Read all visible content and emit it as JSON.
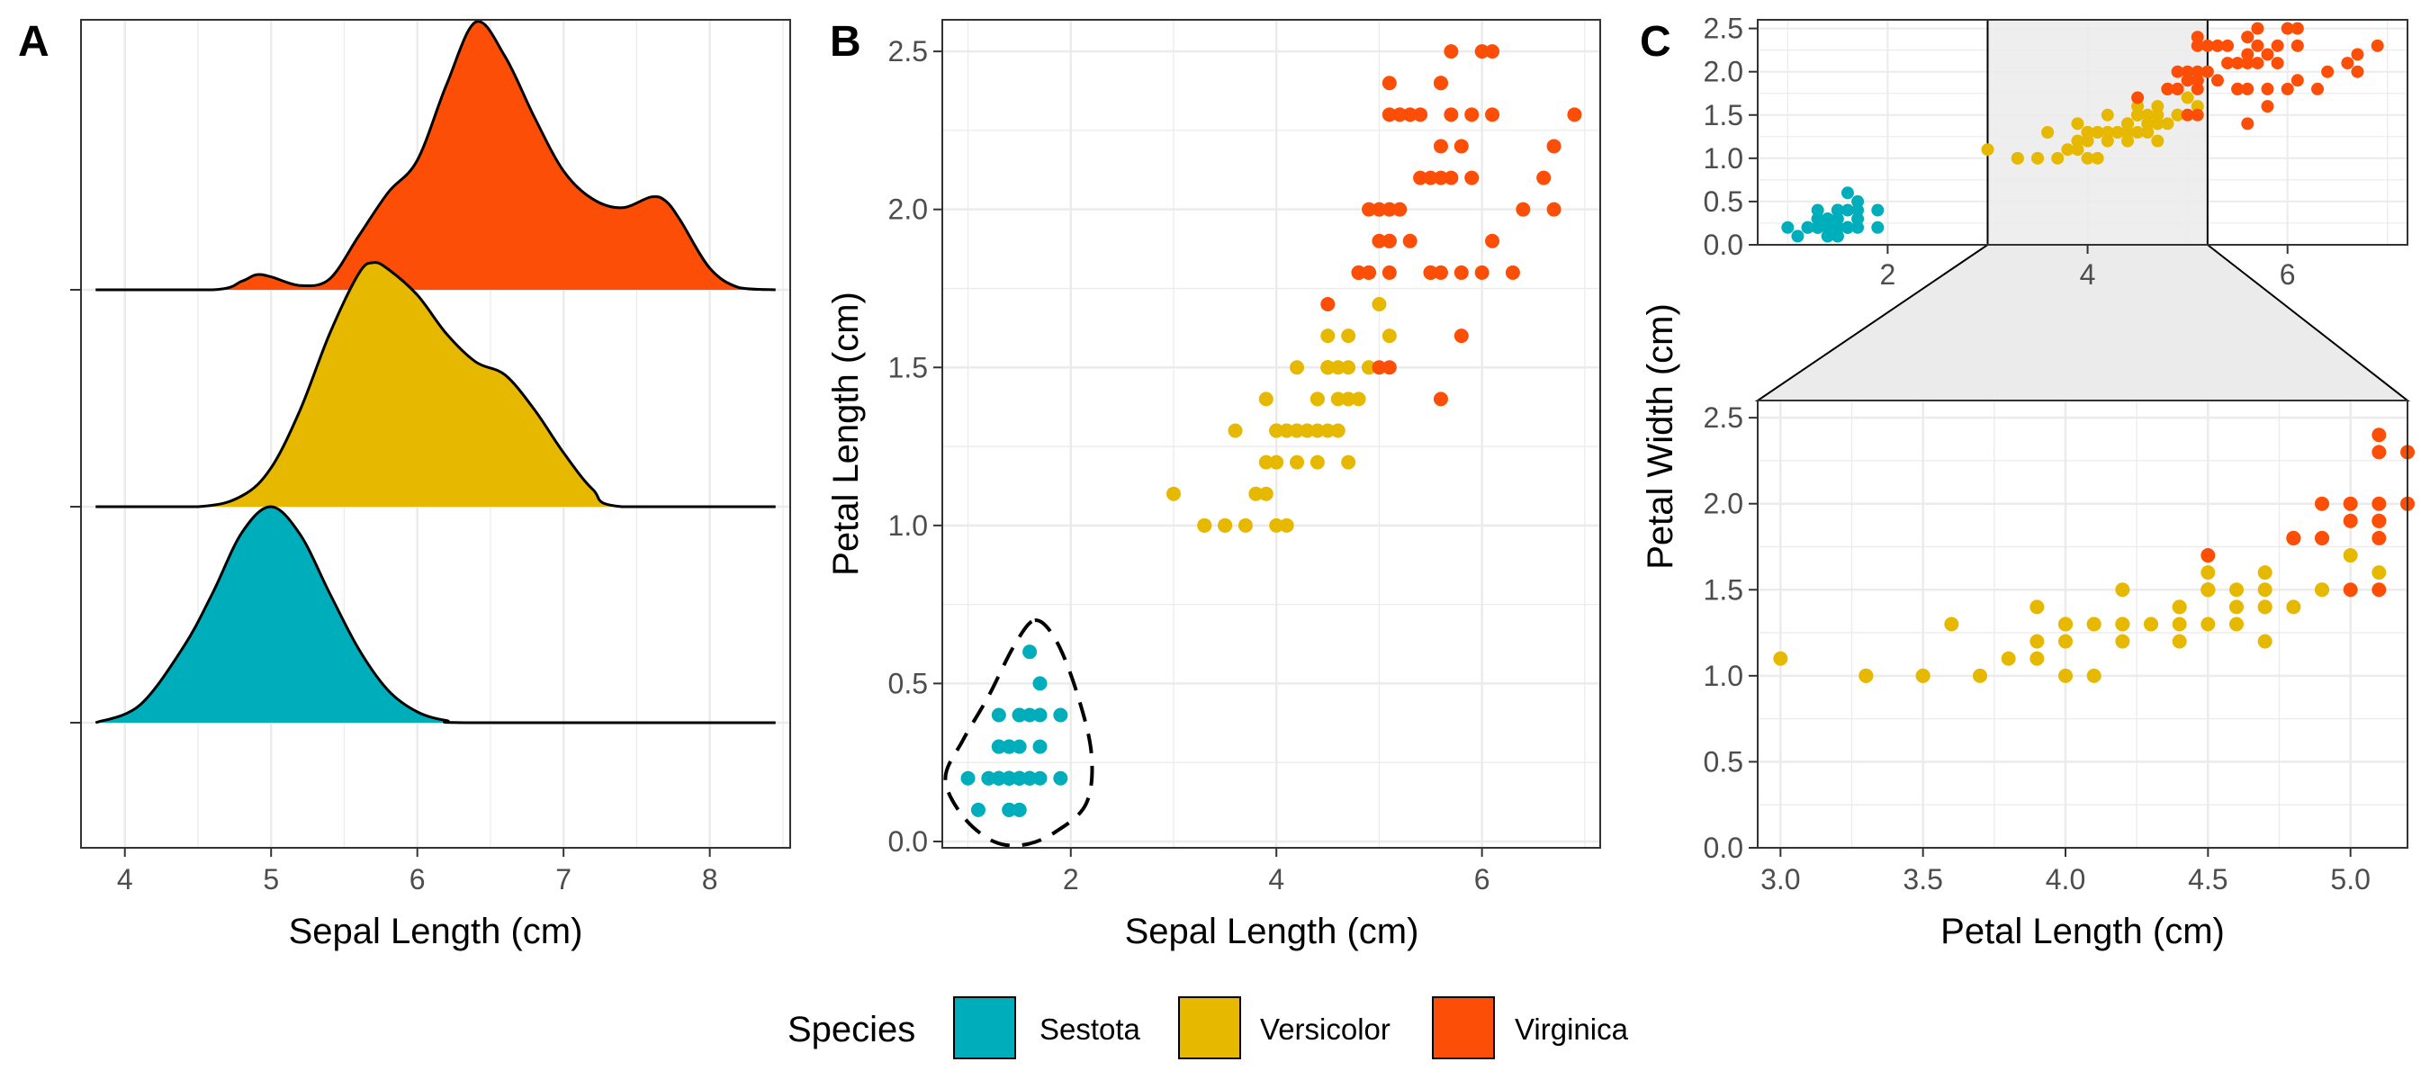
{
  "colors": {
    "Sestota": "#00AEBB",
    "Versicolor": "#E7B800",
    "Virginica": "#FC4E07",
    "grid": "#ebebeb",
    "zoom_fill": "#ebebeb"
  },
  "panels": {
    "a": {
      "letter": "A"
    },
    "b": {
      "letter": "B"
    },
    "c": {
      "letter": "C"
    }
  },
  "legend": {
    "title": "Species",
    "entries": [
      {
        "label": "Sestota",
        "color": "#00AEBB"
      },
      {
        "label": "Versicolor",
        "color": "#E7B800"
      },
      {
        "label": "Virginica",
        "color": "#FC4E07"
      }
    ]
  },
  "chart_data": [
    {
      "id": "A",
      "type": "area",
      "subtype": "ridgeline density",
      "xlabel": "Sepal Length (cm)",
      "ylabel": "",
      "xlim": [
        3.7,
        8.55
      ],
      "xticks": [
        4,
        5,
        6,
        7,
        8
      ],
      "grid": true,
      "series": [
        {
          "name": "Sestota",
          "baseline": 0,
          "x": [
            3.8,
            4.1,
            4.4,
            4.6,
            4.8,
            5.0,
            5.2,
            5.4,
            5.6,
            5.8,
            6.0,
            6.2,
            6.4,
            8.45
          ],
          "y": [
            0,
            0.08,
            0.35,
            0.6,
            0.88,
            1.0,
            0.87,
            0.6,
            0.34,
            0.15,
            0.05,
            0.01,
            0,
            0
          ]
        },
        {
          "name": "Versicolor",
          "baseline": 1,
          "x": [
            3.8,
            4.5,
            4.8,
            5.0,
            5.2,
            5.4,
            5.6,
            5.7,
            5.8,
            6.0,
            6.2,
            6.4,
            6.6,
            6.8,
            7.0,
            7.2,
            7.4,
            8.45
          ],
          "y": [
            0,
            0,
            0.05,
            0.18,
            0.45,
            0.8,
            1.08,
            1.13,
            1.1,
            0.98,
            0.8,
            0.67,
            0.61,
            0.45,
            0.25,
            0.08,
            0,
            0
          ]
        },
        {
          "name": "Virginica",
          "baseline": 2,
          "x": [
            3.8,
            4.6,
            4.8,
            4.9,
            5.0,
            5.2,
            5.4,
            5.6,
            5.8,
            6.0,
            6.2,
            6.4,
            6.6,
            6.8,
            7.0,
            7.2,
            7.4,
            7.6,
            7.7,
            7.8,
            8.0,
            8.2,
            8.45
          ],
          "y": [
            0,
            0,
            0.04,
            0.07,
            0.06,
            0.02,
            0.05,
            0.25,
            0.45,
            0.6,
            0.95,
            1.24,
            1.08,
            0.8,
            0.55,
            0.42,
            0.38,
            0.43,
            0.41,
            0.32,
            0.1,
            0.01,
            0
          ]
        }
      ]
    },
    {
      "id": "B",
      "type": "scatter",
      "xlabel": "Sepal Length (cm)",
      "ylabel": "Petal Length (cm)",
      "xlim": [
        0.75,
        7.15
      ],
      "ylim": [
        -0.02,
        2.6
      ],
      "xticks": [
        2,
        4,
        6
      ],
      "yticks": [
        0.0,
        0.5,
        1.0,
        1.5,
        2.0,
        2.5
      ],
      "grid": true,
      "annotation": "dashed ellipse around Sestota cluster",
      "series": [
        {
          "name": "Sestota",
          "points": [
            [
              1.4,
              0.2
            ],
            [
              1.4,
              0.2
            ],
            [
              1.3,
              0.2
            ],
            [
              1.5,
              0.2
            ],
            [
              1.4,
              0.2
            ],
            [
              1.7,
              0.4
            ],
            [
              1.4,
              0.3
            ],
            [
              1.5,
              0.2
            ],
            [
              1.4,
              0.2
            ],
            [
              1.5,
              0.1
            ],
            [
              1.5,
              0.2
            ],
            [
              1.6,
              0.2
            ],
            [
              1.4,
              0.1
            ],
            [
              1.1,
              0.1
            ],
            [
              1.2,
              0.2
            ],
            [
              1.5,
              0.4
            ],
            [
              1.3,
              0.4
            ],
            [
              1.4,
              0.3
            ],
            [
              1.7,
              0.3
            ],
            [
              1.5,
              0.3
            ],
            [
              1.7,
              0.2
            ],
            [
              1.5,
              0.4
            ],
            [
              1.0,
              0.2
            ],
            [
              1.7,
              0.5
            ],
            [
              1.9,
              0.2
            ],
            [
              1.6,
              0.2
            ],
            [
              1.6,
              0.4
            ],
            [
              1.5,
              0.2
            ],
            [
              1.4,
              0.2
            ],
            [
              1.6,
              0.2
            ],
            [
              1.6,
              0.2
            ],
            [
              1.5,
              0.4
            ],
            [
              1.5,
              0.1
            ],
            [
              1.4,
              0.2
            ],
            [
              1.5,
              0.2
            ],
            [
              1.2,
              0.2
            ],
            [
              1.3,
              0.2
            ],
            [
              1.4,
              0.1
            ],
            [
              1.3,
              0.2
            ],
            [
              1.5,
              0.2
            ],
            [
              1.3,
              0.3
            ],
            [
              1.3,
              0.3
            ],
            [
              1.3,
              0.2
            ],
            [
              1.6,
              0.6
            ],
            [
              1.9,
              0.4
            ],
            [
              1.4,
              0.3
            ],
            [
              1.6,
              0.2
            ],
            [
              1.4,
              0.2
            ],
            [
              1.5,
              0.2
            ],
            [
              1.4,
              0.2
            ]
          ]
        },
        {
          "name": "Versicolor",
          "points": [
            [
              4.7,
              1.4
            ],
            [
              4.5,
              1.5
            ],
            [
              4.9,
              1.5
            ],
            [
              4.0,
              1.3
            ],
            [
              4.6,
              1.5
            ],
            [
              4.5,
              1.3
            ],
            [
              4.7,
              1.6
            ],
            [
              3.3,
              1.0
            ],
            [
              4.6,
              1.3
            ],
            [
              3.9,
              1.4
            ],
            [
              3.5,
              1.0
            ],
            [
              4.2,
              1.5
            ],
            [
              4.0,
              1.0
            ],
            [
              4.7,
              1.4
            ],
            [
              3.6,
              1.3
            ],
            [
              4.4,
              1.4
            ],
            [
              4.5,
              1.5
            ],
            [
              4.1,
              1.0
            ],
            [
              4.5,
              1.5
            ],
            [
              3.9,
              1.1
            ],
            [
              4.8,
              1.8
            ],
            [
              4.0,
              1.3
            ],
            [
              4.9,
              1.5
            ],
            [
              4.7,
              1.2
            ],
            [
              4.3,
              1.3
            ],
            [
              4.4,
              1.4
            ],
            [
              4.8,
              1.4
            ],
            [
              5.0,
              1.7
            ],
            [
              4.5,
              1.5
            ],
            [
              3.5,
              1.0
            ],
            [
              3.8,
              1.1
            ],
            [
              3.7,
              1.0
            ],
            [
              3.9,
              1.2
            ],
            [
              5.1,
              1.6
            ],
            [
              4.5,
              1.5
            ],
            [
              4.5,
              1.6
            ],
            [
              4.7,
              1.5
            ],
            [
              4.4,
              1.3
            ],
            [
              4.1,
              1.3
            ],
            [
              4.0,
              1.3
            ],
            [
              4.4,
              1.2
            ],
            [
              4.6,
              1.4
            ],
            [
              4.0,
              1.2
            ],
            [
              3.3,
              1.0
            ],
            [
              4.2,
              1.3
            ],
            [
              4.2,
              1.2
            ],
            [
              4.2,
              1.3
            ],
            [
              4.3,
              1.3
            ],
            [
              3.0,
              1.1
            ],
            [
              4.1,
              1.3
            ]
          ]
        },
        {
          "name": "Virginica",
          "points": [
            [
              6.0,
              2.5
            ],
            [
              5.1,
              1.9
            ],
            [
              5.9,
              2.1
            ],
            [
              5.6,
              1.8
            ],
            [
              5.8,
              2.2
            ],
            [
              6.6,
              2.1
            ],
            [
              4.5,
              1.7
            ],
            [
              6.3,
              1.8
            ],
            [
              5.8,
              1.8
            ],
            [
              6.1,
              2.5
            ],
            [
              5.1,
              2.0
            ],
            [
              5.3,
              1.9
            ],
            [
              5.5,
              2.1
            ],
            [
              5.0,
              2.0
            ],
            [
              5.1,
              2.4
            ],
            [
              5.3,
              2.3
            ],
            [
              5.5,
              1.8
            ],
            [
              6.7,
              2.2
            ],
            [
              6.9,
              2.3
            ],
            [
              5.0,
              1.5
            ],
            [
              5.7,
              2.3
            ],
            [
              4.9,
              2.0
            ],
            [
              6.7,
              2.0
            ],
            [
              4.9,
              1.8
            ],
            [
              5.7,
              2.1
            ],
            [
              6.0,
              1.8
            ],
            [
              4.8,
              1.8
            ],
            [
              4.9,
              1.8
            ],
            [
              5.6,
              2.1
            ],
            [
              5.8,
              1.6
            ],
            [
              6.1,
              1.9
            ],
            [
              6.4,
              2.0
            ],
            [
              5.6,
              2.2
            ],
            [
              5.1,
              1.5
            ],
            [
              5.6,
              1.4
            ],
            [
              6.1,
              2.3
            ],
            [
              5.6,
              2.4
            ],
            [
              5.5,
              1.8
            ],
            [
              4.8,
              1.8
            ],
            [
              5.4,
              2.1
            ],
            [
              5.6,
              2.4
            ],
            [
              5.1,
              2.3
            ],
            [
              5.1,
              1.9
            ],
            [
              5.9,
              2.3
            ],
            [
              5.7,
              2.5
            ],
            [
              5.2,
              2.3
            ],
            [
              5.0,
              1.9
            ],
            [
              5.2,
              2.0
            ],
            [
              5.4,
              2.3
            ],
            [
              5.1,
              1.8
            ]
          ]
        }
      ]
    },
    {
      "id": "C-overview",
      "type": "scatter",
      "xlabel": "",
      "ylabel": "",
      "xlim": [
        0.7,
        7.2
      ],
      "ylim": [
        0.0,
        2.6
      ],
      "xticks": [
        2,
        4,
        6
      ],
      "yticks": [
        0.0,
        0.5,
        1.0,
        1.5,
        2.0,
        2.5
      ],
      "zoom_region_x": [
        3.0,
        5.2
      ],
      "note": "same points as C-zoom, full range"
    },
    {
      "id": "C-zoom",
      "type": "scatter",
      "xlabel": "Petal Length (cm)",
      "ylabel": "Petal Width (cm)",
      "xlim": [
        2.92,
        5.2
      ],
      "ylim": [
        0.0,
        2.6
      ],
      "xticks": [
        3.0,
        3.5,
        4.0,
        4.5,
        5.0
      ],
      "yticks": [
        0.0,
        0.5,
        1.0,
        1.5,
        2.0,
        2.5
      ],
      "grid": true,
      "series_ref": "same species points as panel B"
    }
  ]
}
